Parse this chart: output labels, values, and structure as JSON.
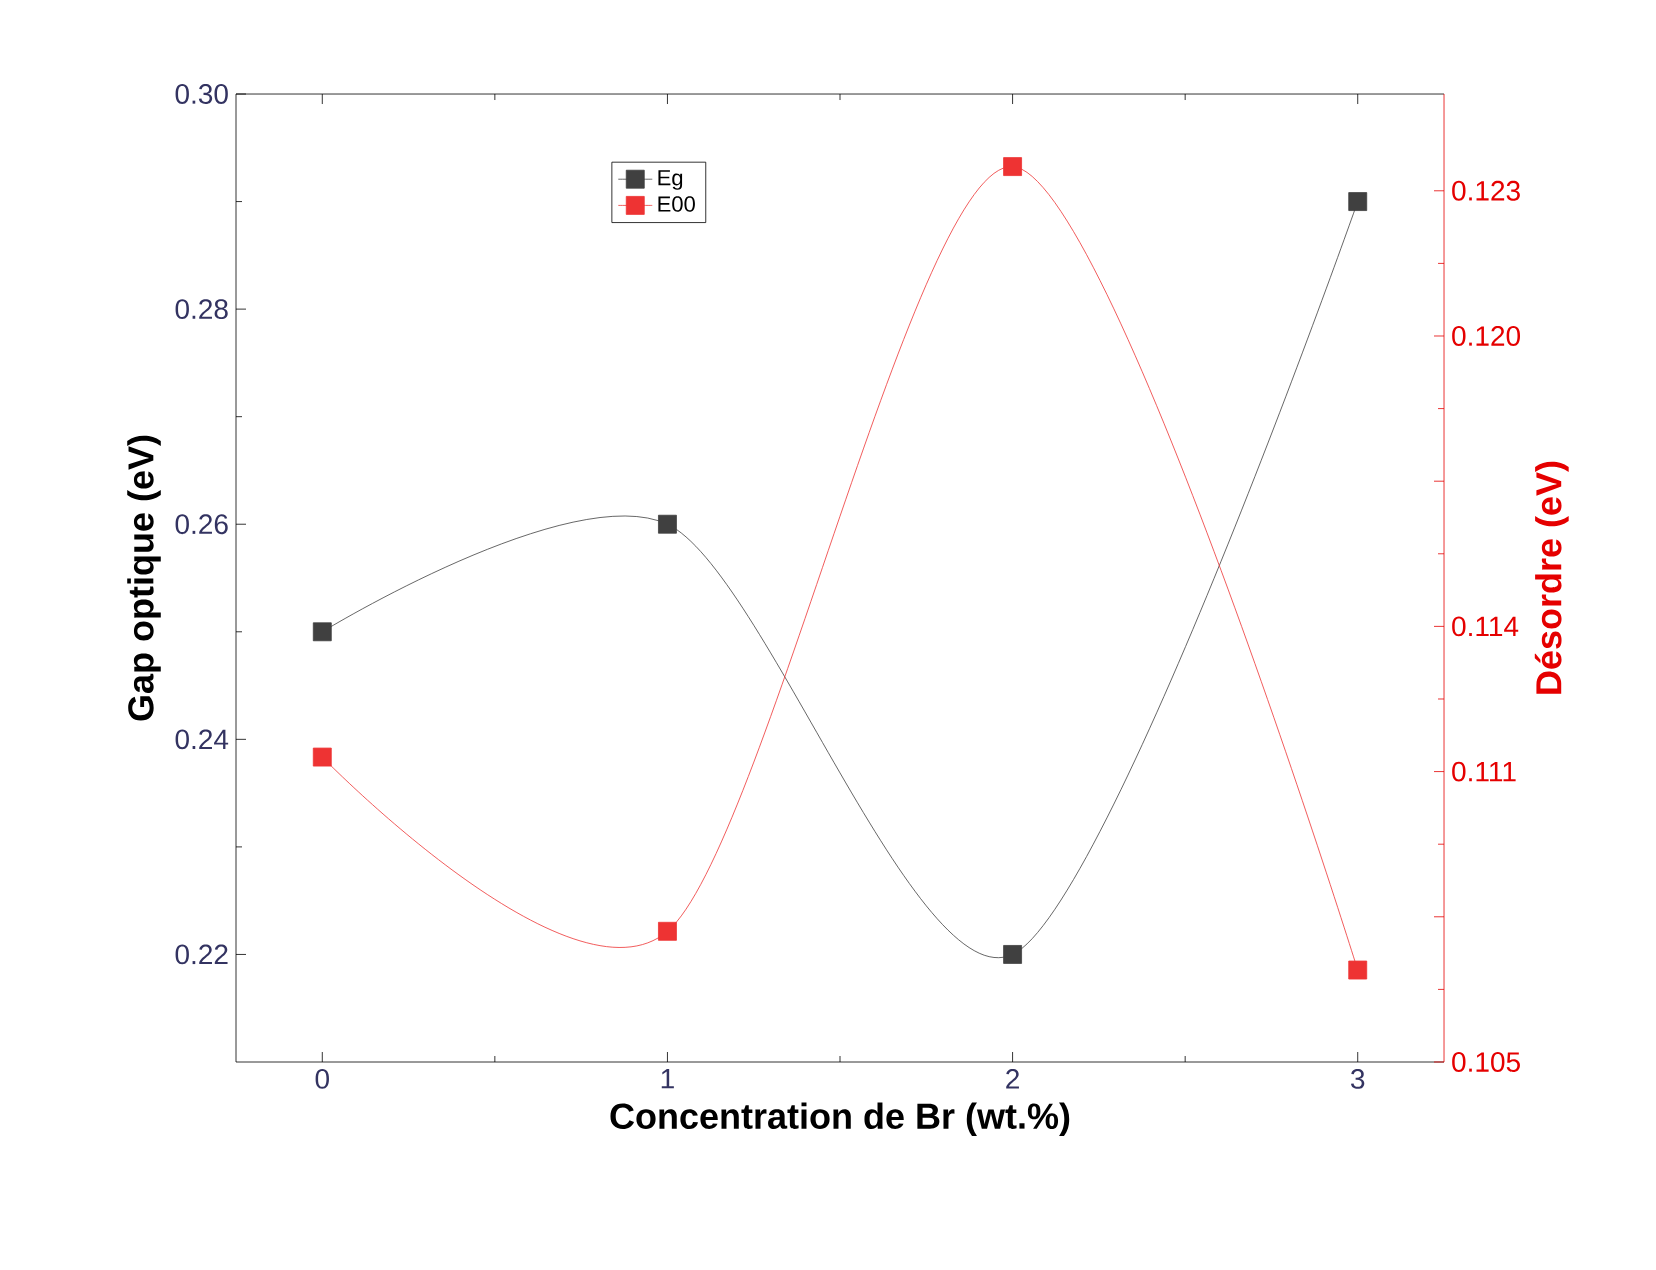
{
  "chart_data": {
    "type": "line",
    "xlabel": "Concentration de Br (wt.%)",
    "ylabel": "Gap optique (eV)",
    "y2label": "Désordre (eV)",
    "x": [
      0,
      1,
      2,
      3
    ],
    "series": [
      {
        "name": "Eg",
        "color": "#404040",
        "values": [
          0.25,
          0.26,
          0.22,
          0.29
        ]
      },
      {
        "name": "E00",
        "color": "#ee3333",
        "axis": "y2",
        "values": [
          0.1113,
          0.1077,
          0.1235,
          0.1069
        ]
      }
    ],
    "xlim": [
      -0.25,
      3.25
    ],
    "xticks": [
      0,
      1,
      2,
      3
    ],
    "ylim": [
      0.21,
      0.3
    ],
    "yticks": [
      0.22,
      0.24,
      0.26,
      0.28,
      {
        "value": 0.3,
        "label": "0.30"
      }
    ],
    "y2lim": [
      0.105,
      0.125
    ],
    "y2ticks": [
      0.105,
      {
        "value": 0.108,
        "label": null
      },
      0.111,
      0.114,
      {
        "value": 0.117,
        "label": null
      },
      {
        "value": 0.12,
        "label": "0.120"
      },
      0.123
    ],
    "legend": "top",
    "marker": "square",
    "line_style": "solid",
    "grid": false
  }
}
